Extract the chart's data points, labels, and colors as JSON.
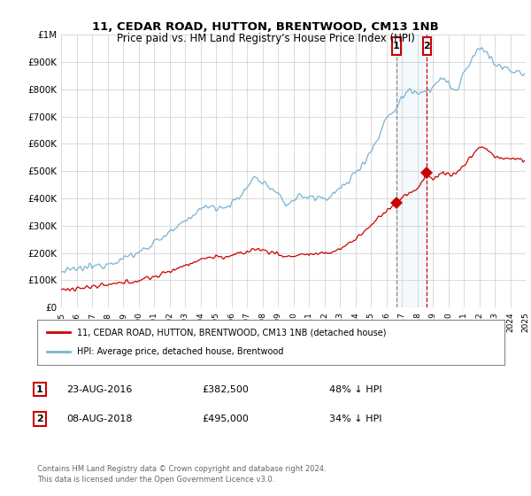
{
  "title": "11, CEDAR ROAD, HUTTON, BRENTWOOD, CM13 1NB",
  "subtitle": "Price paid vs. HM Land Registry's House Price Index (HPI)",
  "sale1_date": "23-AUG-2016",
  "sale1_price": 382500,
  "sale1_label": "48% ↓ HPI",
  "sale1_year": 2016.65,
  "sale2_date": "08-AUG-2018",
  "sale2_price": 495000,
  "sale2_label": "34% ↓ HPI",
  "sale2_year": 2018.62,
  "legend_label1": "11, CEDAR ROAD, HUTTON, BRENTWOOD, CM13 1NB (detached house)",
  "legend_label2": "HPI: Average price, detached house, Brentwood",
  "footer": "Contains HM Land Registry data © Crown copyright and database right 2024.\nThis data is licensed under the Open Government Licence v3.0.",
  "hpi_color": "#7ab3d4",
  "sale_color": "#cc0000",
  "shade_color": "#d0e8f5",
  "ylim_max": 1000000,
  "ylim_min": 0,
  "start_year": 1995,
  "end_year": 2025
}
